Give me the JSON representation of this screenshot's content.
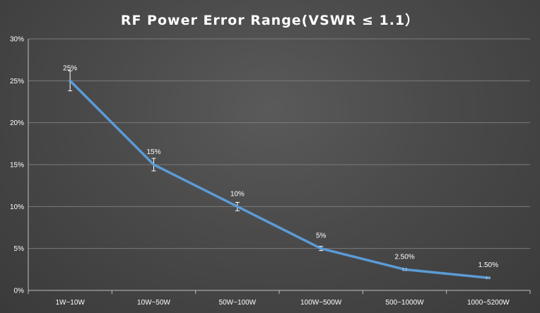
{
  "chart_data": {
    "type": "line",
    "title": "RF Power Error Range(VSWR ≤ 1.1）",
    "xlabel": "",
    "ylabel": "",
    "categories": [
      "1W~10W",
      "10W~50W",
      "50W~100W",
      "100W~500W",
      "500~1000W",
      "1000~5200W"
    ],
    "series": [
      {
        "values": [
          25,
          15,
          10,
          5,
          2.5,
          1.5
        ],
        "data_labels": [
          "25%",
          "15%",
          "10%",
          "5%",
          "2.50%",
          "1.50%"
        ],
        "error_bars": [
          1.2,
          0.75,
          0.5,
          0.25,
          0.12,
          0.08
        ]
      }
    ],
    "ylim": [
      0,
      30
    ],
    "yticks": [
      "0%",
      "5%",
      "10%",
      "15%",
      "20%",
      "25%",
      "30%"
    ],
    "grid": true,
    "line_color": "#5b9bd5",
    "grid_color": "#7a7a7a",
    "text_color": "#ffffff"
  }
}
